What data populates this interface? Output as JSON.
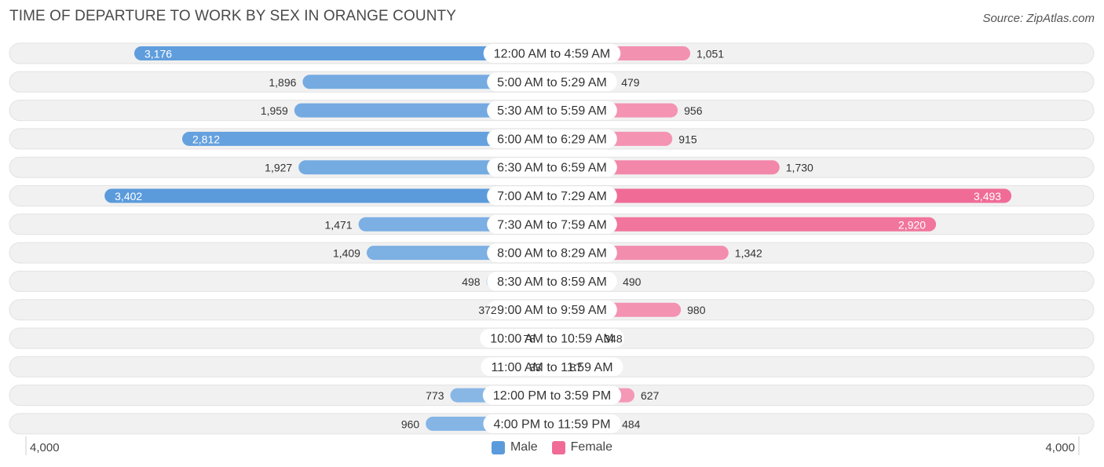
{
  "title": "TIME OF DEPARTURE TO WORK BY SEX IN ORANGE COUNTY",
  "source": "Source: ZipAtlas.com",
  "axis": {
    "left_label": "4,000",
    "right_label": "4,000"
  },
  "legend": [
    {
      "label": "Male",
      "color": "#5b9bdc"
    },
    {
      "label": "Female",
      "color": "#f06c97"
    }
  ],
  "chart_data": {
    "type": "bar",
    "orientation": "horizontal-diverging",
    "title": "TIME OF DEPARTURE TO WORK BY SEX IN ORANGE COUNTY",
    "xlim": [
      -4000,
      4000
    ],
    "categories": [
      "12:00 AM to 4:59 AM",
      "5:00 AM to 5:29 AM",
      "5:30 AM to 5:59 AM",
      "6:00 AM to 6:29 AM",
      "6:30 AM to 6:59 AM",
      "7:00 AM to 7:29 AM",
      "7:30 AM to 7:59 AM",
      "8:00 AM to 8:29 AM",
      "8:30 AM to 8:59 AM",
      "9:00 AM to 9:59 AM",
      "10:00 AM to 10:59 AM",
      "11:00 AM to 11:59 AM",
      "12:00 PM to 3:59 PM",
      "4:00 PM to 11:59 PM"
    ],
    "series": [
      {
        "name": "Male",
        "color": "#5b9bdc",
        "values": [
          3176,
          1896,
          1959,
          2812,
          1927,
          3402,
          1471,
          1409,
          498,
          372,
          78,
          33,
          773,
          960
        ]
      },
      {
        "name": "Female",
        "color": "#f06c97",
        "values": [
          1051,
          479,
          956,
          915,
          1730,
          3493,
          2920,
          1342,
          490,
          980,
          348,
          87,
          627,
          484
        ]
      }
    ],
    "legend_position": "bottom-center"
  }
}
